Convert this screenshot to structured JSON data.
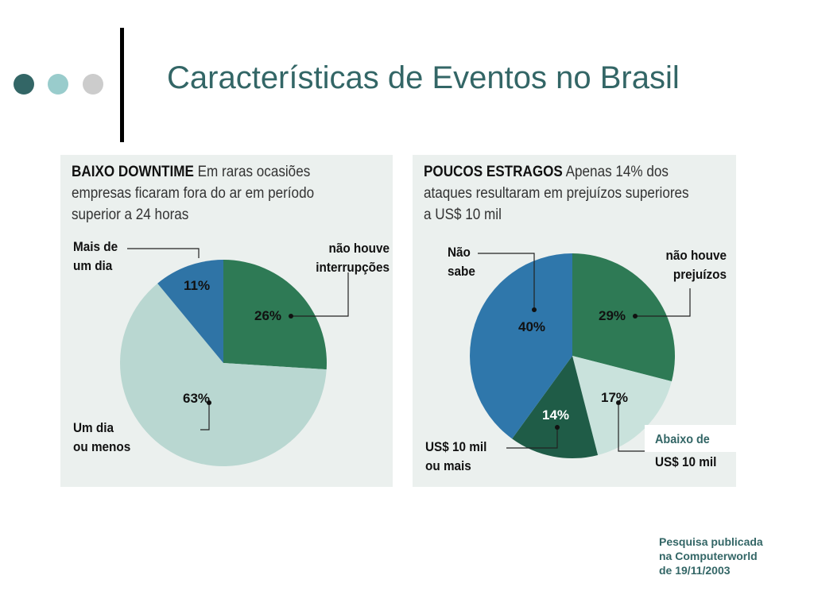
{
  "title": "Características de Eventos no Brasil",
  "colors": {
    "title": "#336666",
    "dot1": "#336666",
    "dot2": "#99cccc",
    "dot3": "#cccccc"
  },
  "note": [
    "Pesquisa publicada",
    "na Computerworld",
    "de 19/11/2003"
  ],
  "chart_data": [
    {
      "type": "pie",
      "title": "BAIXO DOWNTIME",
      "subtitle": "Em raras ocasiões empresas ficaram fora do ar em período superior a 24 horas",
      "subtitle_lines": [
        "Em raras ocasiões",
        "empresas ficaram fora do ar em período",
        "superior a 24 horas"
      ],
      "slices": [
        {
          "label": "não houve interrupções",
          "label_lines": [
            "não houve",
            "interrupções"
          ],
          "value": 26,
          "text": "26%",
          "color": "#2e7a55"
        },
        {
          "label": "Um dia ou menos",
          "label_lines": [
            "Um dia",
            "ou menos"
          ],
          "value": 63,
          "text": "63%",
          "color": "#b9d7d1"
        },
        {
          "label": "Mais de um dia",
          "label_lines": [
            "Mais de",
            "um dia"
          ],
          "value": 11,
          "text": "11%",
          "color": "#2f74a6"
        }
      ]
    },
    {
      "type": "pie",
      "title": "POUCOS ESTRAGOS",
      "subtitle": "Apenas 14% dos ataques resultaram em prejuízos superiores a US$ 10 mil",
      "subtitle_lines": [
        "Apenas 14% dos",
        "ataques resultaram em prejuízos superiores",
        "a US$ 10 mil"
      ],
      "slices": [
        {
          "label": "não houve prejuízos",
          "label_lines": [
            "não houve",
            "prejuízos"
          ],
          "value": 29,
          "text": "29%",
          "color": "#2e7a55"
        },
        {
          "label": "Abaixo de US$ 10 mil",
          "label_lines": [
            "Abaixo de",
            "US$ 10 mil"
          ],
          "value": 17,
          "text": "17%",
          "color": "#c9e2dc"
        },
        {
          "label": "US$ 10 mil ou mais",
          "label_lines": [
            "US$ 10 mil",
            "ou mais"
          ],
          "value": 14,
          "text": "14%",
          "color": "#1f5c47"
        },
        {
          "label": "Não sabe",
          "label_lines": [
            "Não",
            "sabe"
          ],
          "value": 40,
          "text": "40%",
          "color": "#2f77ab"
        }
      ]
    }
  ]
}
